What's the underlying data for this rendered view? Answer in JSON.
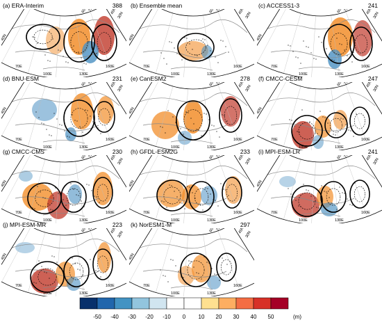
{
  "figure": {
    "panels": [
      {
        "id": "a",
        "title": "(a) ERA-Interim",
        "number": "388"
      },
      {
        "id": "b",
        "title": "(b) Ensemble mean",
        "number": ""
      },
      {
        "id": "c",
        "title": "(c) ACCESS1-3",
        "number": "241"
      },
      {
        "id": "d",
        "title": "(d) BNU-ESM",
        "number": "231"
      },
      {
        "id": "e",
        "title": "(e) CanESM2",
        "number": "278"
      },
      {
        "id": "f",
        "title": "(f) CMCC-CESM",
        "number": "247"
      },
      {
        "id": "g",
        "title": "(g) CMCC-CMS",
        "number": "230"
      },
      {
        "id": "h",
        "title": "(h) GFDL-ESM2G",
        "number": "233"
      },
      {
        "id": "i",
        "title": "(i) MPI-ESM-LR",
        "number": "241"
      },
      {
        "id": "j",
        "title": "(j) MPI-ESM-MR",
        "number": "223"
      },
      {
        "id": "k",
        "title": "(k) NorESM1-M",
        "number": "297"
      }
    ],
    "map_labels": {
      "lon": [
        "70E",
        "100E",
        "130E",
        "160E"
      ],
      "lat": [
        "40N",
        "60N",
        "75N",
        "30N",
        "45N"
      ]
    }
  },
  "colorbar": {
    "ticks": [
      "-50",
      "-40",
      "-30",
      "-20",
      "-10",
      "0",
      "10",
      "20",
      "30",
      "40",
      "50"
    ],
    "unit": "(m)",
    "colors": [
      "#08306b",
      "#2166ac",
      "#4393c3",
      "#92c5de",
      "#d1e5f0",
      "#ffffff",
      "#ffffff",
      "#fee090",
      "#fdae61",
      "#f46d43",
      "#d73027",
      "#a50026"
    ]
  },
  "colors": {
    "positive": "#f28e2b",
    "strong_positive": "#c0392b",
    "negative": "#4a90c2",
    "coast": "#888888",
    "contour": "#000000"
  }
}
